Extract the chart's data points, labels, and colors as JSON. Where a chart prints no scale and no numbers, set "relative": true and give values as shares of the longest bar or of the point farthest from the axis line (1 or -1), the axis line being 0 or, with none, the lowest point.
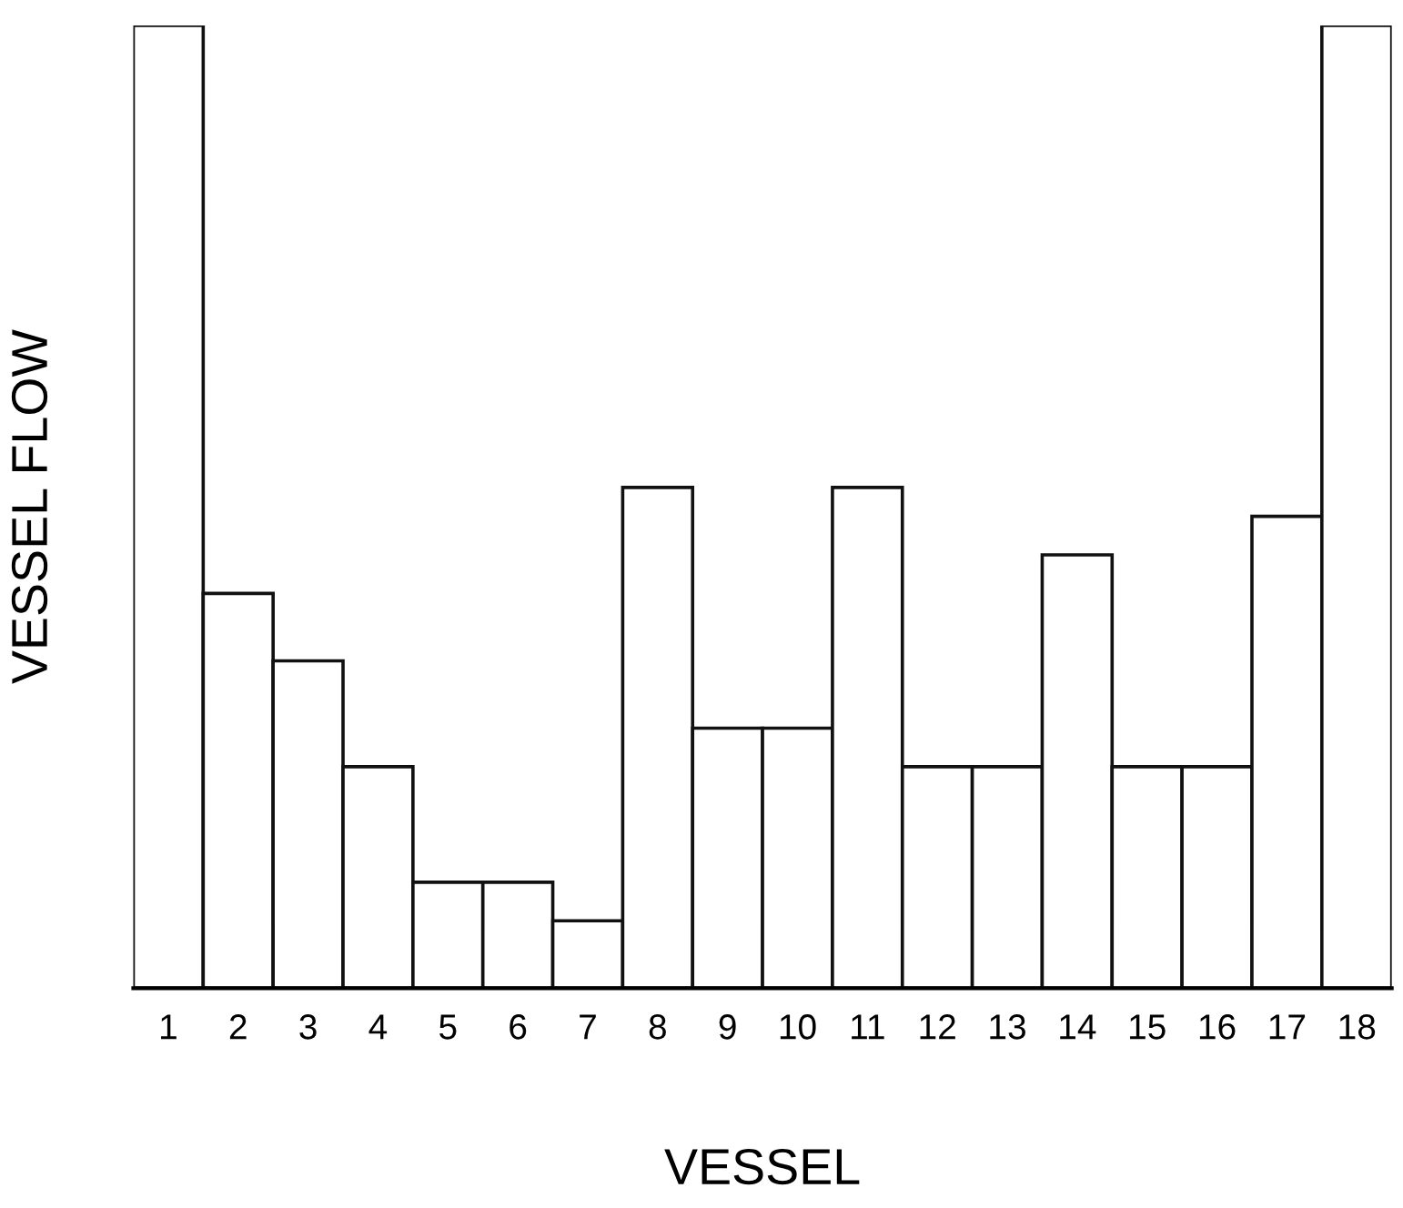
{
  "chart_data": {
    "type": "bar",
    "xlabel": "VESSEL",
    "ylabel": "VESSEL FLOW",
    "relative": true,
    "categories": [
      "1",
      "2",
      "3",
      "4",
      "5",
      "6",
      "7",
      "8",
      "9",
      "10",
      "11",
      "12",
      "13",
      "14",
      "15",
      "16",
      "17",
      "18"
    ],
    "values": [
      1,
      0.41,
      0.34,
      0.23,
      0.11,
      0.11,
      0.07,
      0.52,
      0.27,
      0.27,
      0.52,
      0.23,
      0.23,
      0.45,
      0.23,
      0.23,
      0.49,
      1
    ],
    "color": "#ffffff",
    "grid": false,
    "legend": false
  }
}
